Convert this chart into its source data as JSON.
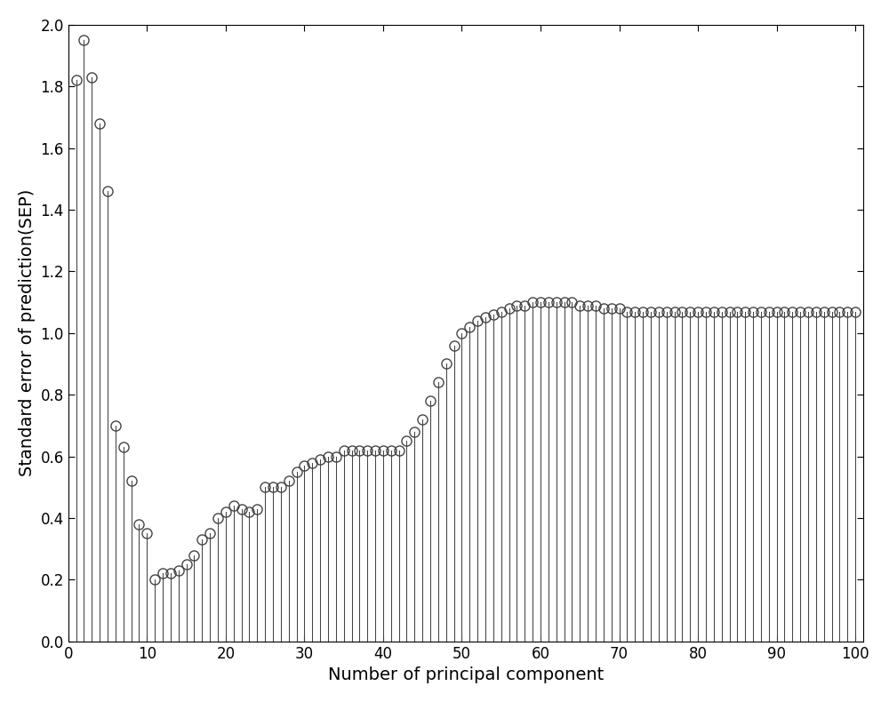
{
  "x": [
    1,
    2,
    3,
    4,
    5,
    6,
    7,
    8,
    9,
    10,
    11,
    12,
    13,
    14,
    15,
    16,
    17,
    18,
    19,
    20,
    21,
    22,
    23,
    24,
    25,
    26,
    27,
    28,
    29,
    30,
    31,
    32,
    33,
    34,
    35,
    36,
    37,
    38,
    39,
    40,
    41,
    42,
    43,
    44,
    45,
    46,
    47,
    48,
    49,
    50,
    51,
    52,
    53,
    54,
    55,
    56,
    57,
    58,
    59,
    60,
    61,
    62,
    63,
    64,
    65,
    66,
    67,
    68,
    69,
    70,
    71,
    72,
    73,
    74,
    75,
    76,
    77,
    78,
    79,
    80,
    81,
    82,
    83,
    84,
    85,
    86,
    87,
    88,
    89,
    90,
    91,
    92,
    93,
    94,
    95,
    96,
    97,
    98,
    99,
    100
  ],
  "y": [
    1.82,
    1.95,
    1.83,
    1.68,
    1.46,
    0.7,
    0.63,
    0.52,
    0.38,
    0.35,
    0.2,
    0.22,
    0.22,
    0.23,
    0.25,
    0.28,
    0.33,
    0.35,
    0.4,
    0.42,
    0.44,
    0.43,
    0.42,
    0.43,
    0.5,
    0.5,
    0.5,
    0.52,
    0.55,
    0.57,
    0.58,
    0.59,
    0.6,
    0.6,
    0.62,
    0.62,
    0.62,
    0.62,
    0.62,
    0.62,
    0.62,
    0.62,
    0.65,
    0.68,
    0.72,
    0.78,
    0.84,
    0.9,
    0.96,
    1.0,
    1.02,
    1.04,
    1.05,
    1.06,
    1.07,
    1.08,
    1.09,
    1.09,
    1.1,
    1.1,
    1.1,
    1.1,
    1.1,
    1.1,
    1.09,
    1.09,
    1.09,
    1.08,
    1.08,
    1.08,
    1.07,
    1.07,
    1.07,
    1.07,
    1.07,
    1.07,
    1.07,
    1.07,
    1.07,
    1.07,
    1.07,
    1.07,
    1.07,
    1.07,
    1.07,
    1.07,
    1.07,
    1.07,
    1.07,
    1.07,
    1.07,
    1.07,
    1.07,
    1.07,
    1.07,
    1.07,
    1.07,
    1.07,
    1.07,
    1.07
  ],
  "xlabel": "Number of principal component",
  "ylabel": "Standard error of prediction(SEP)",
  "xlim": [
    0,
    101
  ],
  "ylim": [
    0,
    2.0
  ],
  "xticks": [
    0,
    10,
    20,
    30,
    40,
    50,
    60,
    70,
    80,
    90,
    100
  ],
  "yticks": [
    0,
    0.2,
    0.4,
    0.6,
    0.8,
    1.0,
    1.2,
    1.4,
    1.6,
    1.8,
    2.0
  ],
  "line_color": "#444444",
  "marker_color": "none",
  "marker_edge_color": "#444444",
  "background_color": "#ffffff",
  "marker_size": 8,
  "linewidth": 0.75,
  "xlabel_fontsize": 14,
  "ylabel_fontsize": 14,
  "tick_labelsize": 12
}
